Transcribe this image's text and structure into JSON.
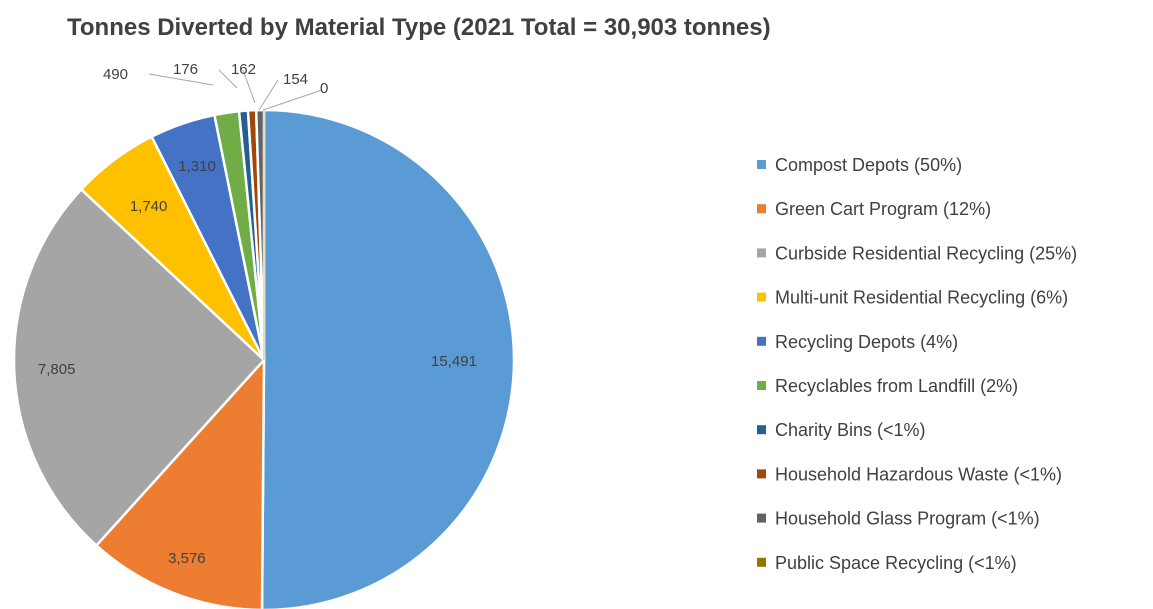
{
  "chart_data": {
    "type": "pie",
    "title": "Tonnes Diverted by Material Type (2021 Total = 30,903 tonnes)",
    "slices": [
      {
        "name": "Compost Depots",
        "legend": "Compost Depots (50%)",
        "value": 15491,
        "label": "15,491",
        "color": "#5B9BD5"
      },
      {
        "name": "Green Cart Program",
        "legend": "Green Cart Program (12%)",
        "value": 3576,
        "label": "3,576",
        "color": "#ED7D31"
      },
      {
        "name": "Curbside Residential Recycling",
        "legend": "Curbside Residential Recycling (25%)",
        "value": 7805,
        "label": "7,805",
        "color": "#A5A5A5"
      },
      {
        "name": "Multi-unit Residential Recycling",
        "legend": "Multi-unit Residential Recycling (6%)",
        "value": 1740,
        "label": "1,740",
        "color": "#FFC000"
      },
      {
        "name": "Recycling Depots",
        "legend": "Recycling Depots (4%)",
        "value": 1310,
        "label": "1,310",
        "color": "#4472C4"
      },
      {
        "name": "Recyclables from Landfill",
        "legend": "Recyclables from Landfill (2%)",
        "value": 490,
        "label": "490",
        "color": "#70AD47"
      },
      {
        "name": "Charity Bins",
        "legend": "Charity Bins (<1%)",
        "value": 176,
        "label": "176",
        "color": "#255E91"
      },
      {
        "name": "Household Hazardous Waste",
        "legend": "Household Hazardous Waste (<1%)",
        "value": 162,
        "label": "162",
        "color": "#9E480E"
      },
      {
        "name": "Household Glass Program",
        "legend": "Household Glass Program (<1%)",
        "value": 154,
        "label": "154",
        "color": "#636363"
      },
      {
        "name": "Public Space Recycling",
        "legend": "Public Space Recycling (<1%)",
        "value": 0,
        "label": "0",
        "color": "#997300"
      }
    ],
    "legend_position": "right"
  }
}
